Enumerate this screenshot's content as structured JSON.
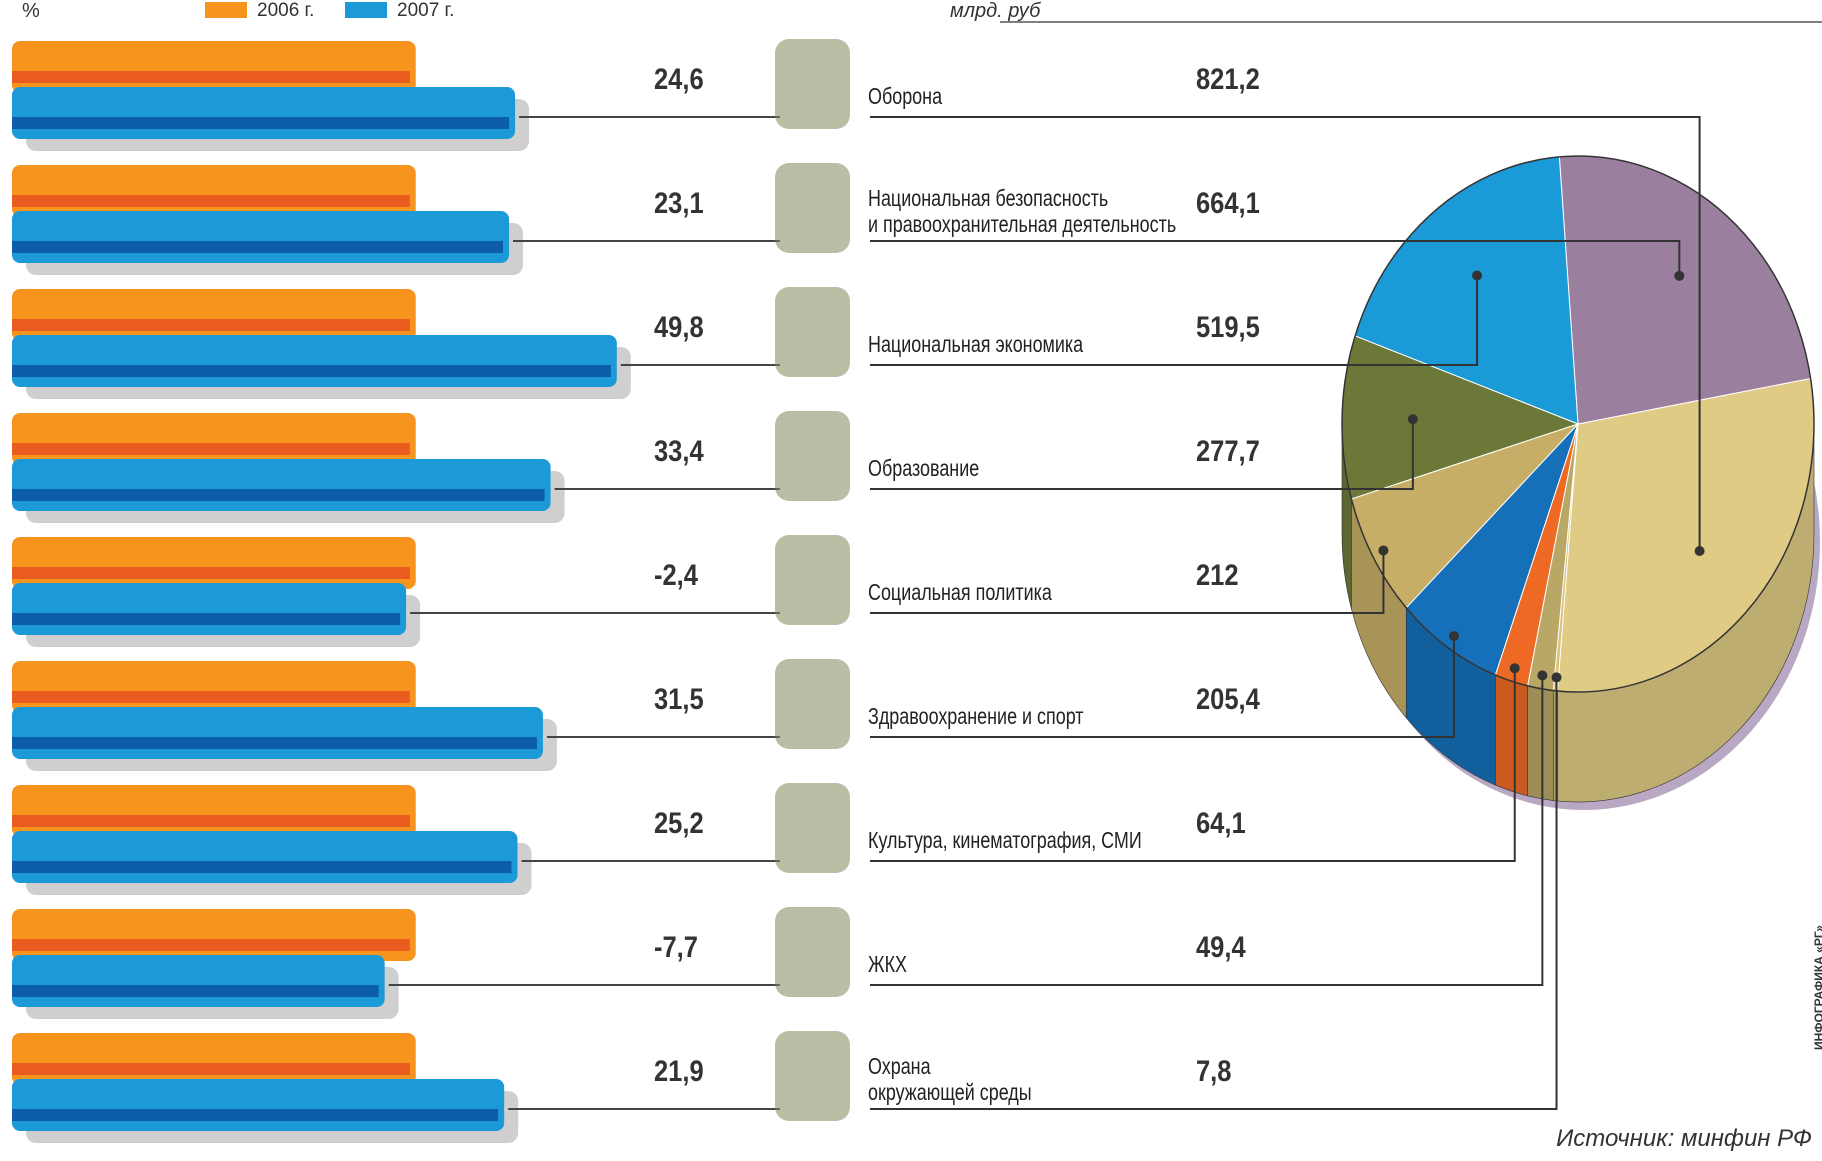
{
  "chart_data": {
    "type": "bar-pie",
    "axis_label": "%",
    "pie_label": "млрд. руб",
    "source": "Источник: минфин РФ",
    "credit": "ИНФОГРАФИКА «РГ»",
    "categories": [
      "Оборона",
      "Национальная безопасность\nи правоохранительная деятельность",
      "Национальная экономика",
      "Образование",
      "Социальная политика",
      "Здравоохранение и спорт",
      "Культура, кинематография, СМИ",
      "ЖКХ",
      "Охрана\nокружающей среды"
    ],
    "xlim": [
      -100,
      60
    ],
    "series": [
      {
        "name": "2006 г.",
        "color": "#f7941d"
      },
      {
        "name": "2007 г.",
        "color": "#1b9ad7",
        "values": [
          24.6,
          23.1,
          49.8,
          33.4,
          -2.4,
          31.5,
          25.2,
          -7.7,
          21.9
        ],
        "value_labels": [
          "24,6",
          "23,1",
          "49,8",
          "33,4",
          "-2,4",
          "31,5",
          "25,2",
          "-7,7",
          "21,9"
        ]
      }
    ],
    "pie": {
      "values": [
        821.2,
        664.1,
        519.5,
        277.7,
        212,
        205.4,
        64.1,
        49.4,
        7.8
      ],
      "value_labels": [
        "821,2",
        "664,1",
        "519,5",
        "277,7",
        "212",
        "205,4",
        "64,1",
        "49,4",
        "7,8"
      ],
      "colors": [
        "#e0cb84",
        "#9a809e",
        "#1a9ad6",
        "#6b7838",
        "#c7ae66",
        "#1570b9",
        "#ee6a24",
        "#b9a766",
        "#d7c17a"
      ]
    }
  }
}
